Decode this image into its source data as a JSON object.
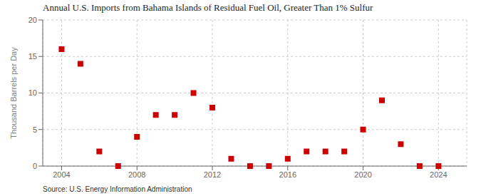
{
  "chart_data": {
    "type": "scatter",
    "title": "Annual U.S. Imports from Bahama Islands of Residual Fuel Oil, Greater Than 1% Sulfur",
    "y_label": "Thousand Barrels per Day",
    "annotations": [
      "Source: U.S. Energy Information Administration"
    ],
    "x": [
      2004,
      2005,
      2006,
      2007,
      2008,
      2009,
      2010,
      2011,
      2012,
      2013,
      2014,
      2015,
      2016,
      2017,
      2018,
      2019,
      2020,
      2021,
      2022,
      2023,
      2024
    ],
    "values": [
      16,
      14,
      2,
      0,
      4,
      7,
      7,
      10,
      8,
      1,
      0,
      0,
      1,
      2,
      2,
      2,
      5,
      9,
      3,
      0,
      0
    ],
    "color": "#cc0000",
    "marker": "square",
    "xlim": [
      2003.0,
      2025.5
    ],
    "ylim": [
      0,
      20
    ],
    "xticks": [
      2004,
      2008,
      2012,
      2016,
      2020,
      2024
    ],
    "yticks": [
      0,
      5,
      10,
      15,
      20
    ],
    "grid": true
  }
}
